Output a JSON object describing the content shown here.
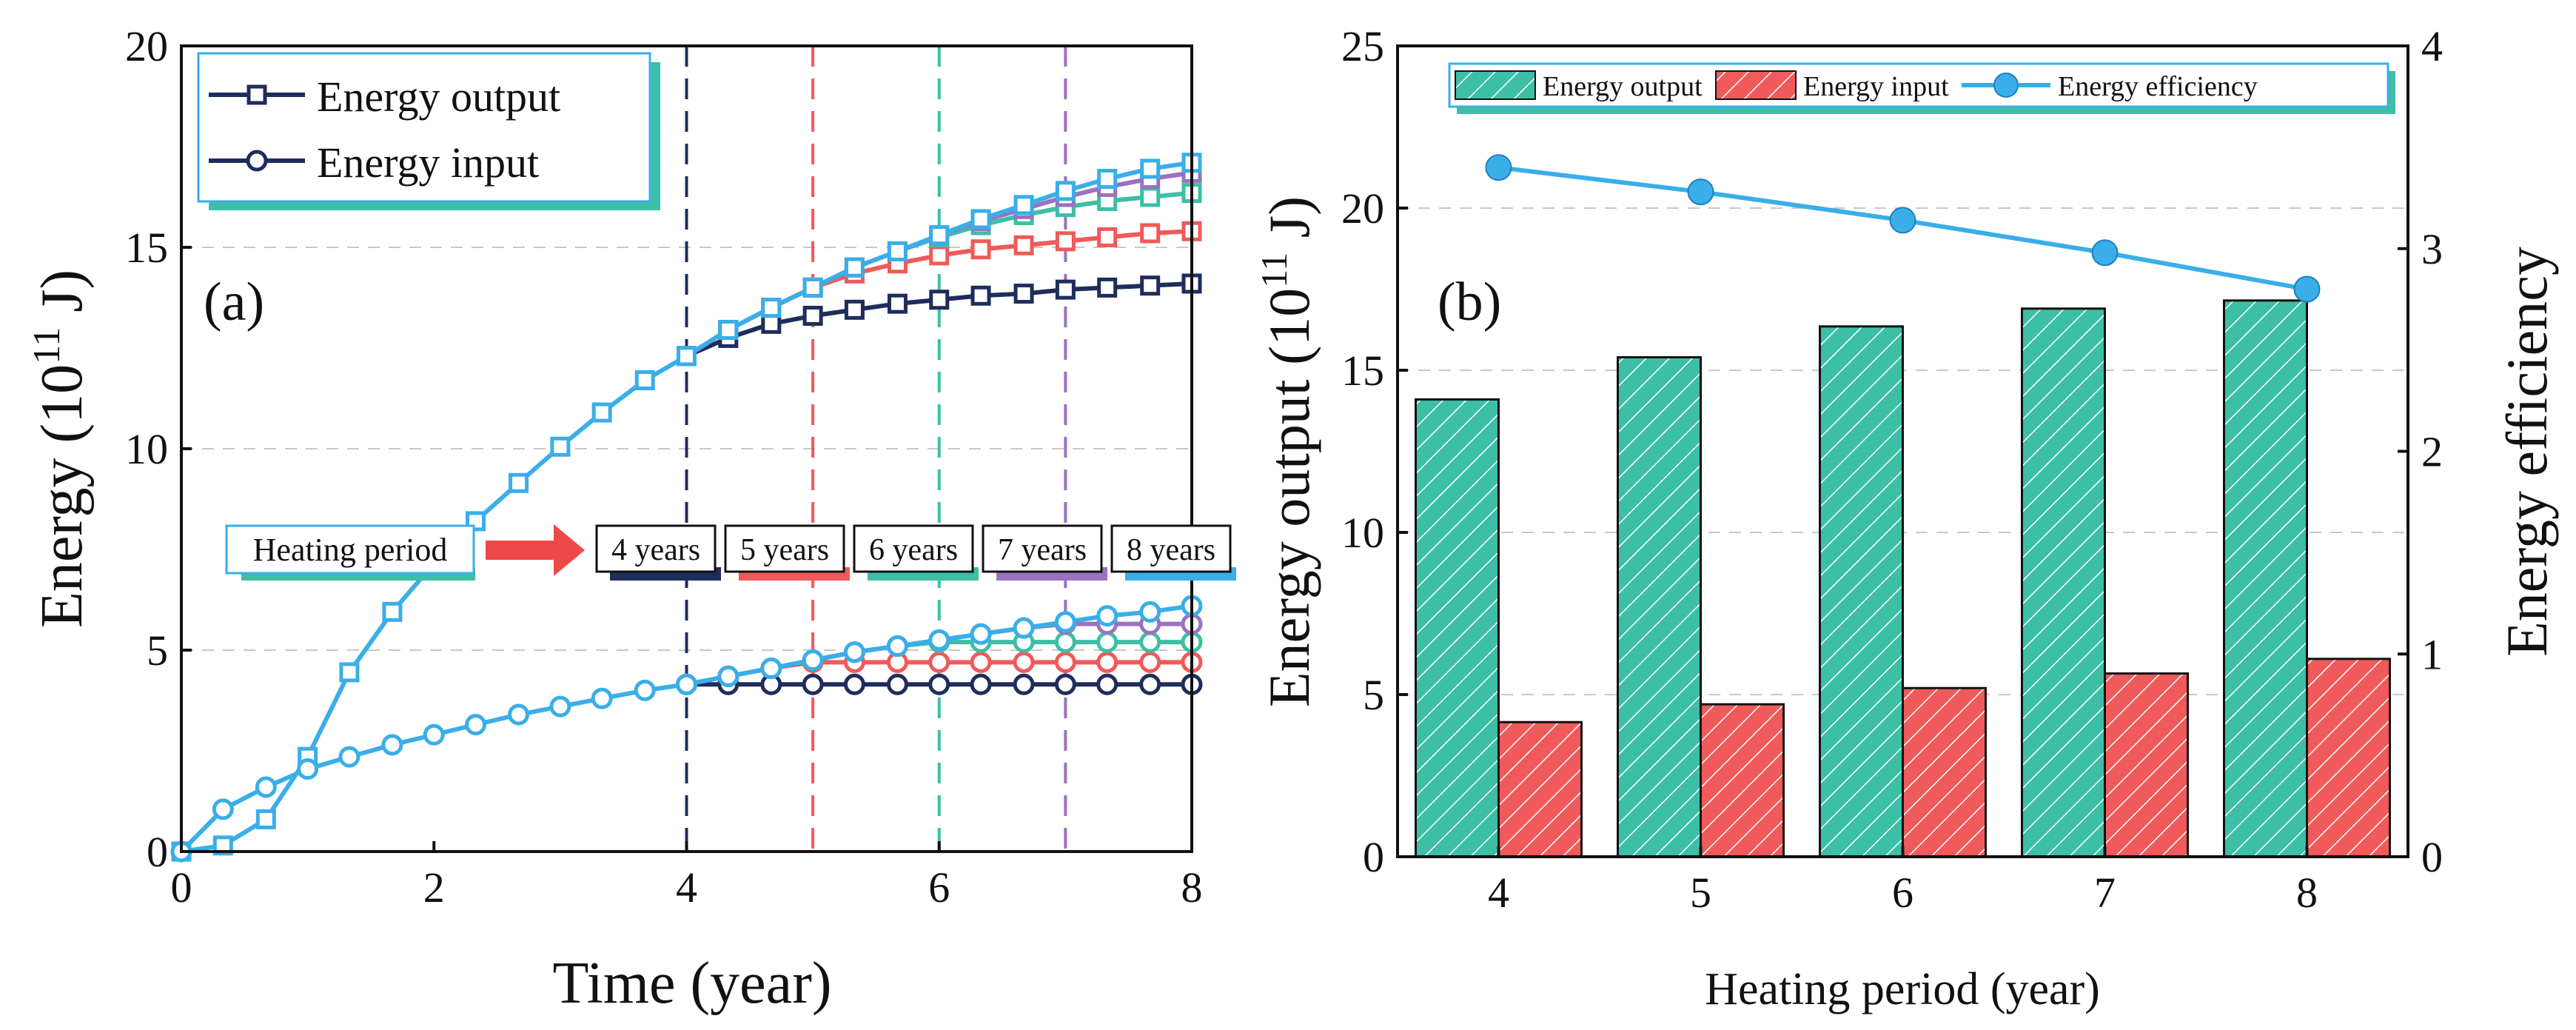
{
  "chart_data": [
    {
      "panel_label": "(a)",
      "type": "line",
      "xlabel": "Time (year)",
      "ylabel_main": "Energy (10",
      "ylabel_sup": "11",
      "ylabel_unit": " J)",
      "xlim": [
        0,
        8
      ],
      "ylim": [
        0,
        20
      ],
      "xticks": [
        "0",
        "2",
        "4",
        "6",
        "8"
      ],
      "yticks": [
        "0",
        "5",
        "10",
        "15",
        "20"
      ],
      "legend": [
        "Energy output",
        "Energy input"
      ],
      "heating_label": "Heating period",
      "period_labels": [
        "4 years",
        "5 years",
        "6 years",
        "7 years",
        "8 years"
      ],
      "period_years": [
        4,
        5,
        6,
        7,
        8
      ],
      "period_colors": [
        "#1f2d5c",
        "#f05a5a",
        "#3cbfa5",
        "#9a72c0",
        "#3aaee8"
      ],
      "x": [
        0,
        0.33,
        0.67,
        1.0,
        1.33,
        1.67,
        2.0,
        2.33,
        2.67,
        3.0,
        3.33,
        3.67,
        4.0,
        4.33,
        4.67,
        5.0,
        5.33,
        5.67,
        6.0,
        6.33,
        6.67,
        7.0,
        7.33,
        7.67,
        8.0
      ],
      "output_common": [
        0,
        0.15,
        0.8,
        2.35,
        4.45,
        5.95,
        7.15,
        8.2,
        9.15,
        10.05,
        10.9,
        11.7,
        12.3
      ],
      "input_common": [
        0,
        1.05,
        1.6,
        2.05,
        2.35,
        2.65,
        2.9,
        3.15,
        3.4,
        3.6,
        3.8,
        4.0,
        4.15
      ],
      "series": [
        {
          "name": "4 years",
          "output": [
            12.3,
            12.75,
            13.1,
            13.3,
            13.45,
            13.6,
            13.7,
            13.8,
            13.85,
            13.95,
            14.0,
            14.05,
            14.1
          ],
          "input": [
            4.15,
            4.15,
            4.15,
            4.15,
            4.15,
            4.15,
            4.15,
            4.15,
            4.15,
            4.15,
            4.15,
            4.15,
            4.15
          ]
        },
        {
          "name": "5 years",
          "output": [
            12.3,
            12.95,
            13.5,
            14.0,
            14.35,
            14.6,
            14.8,
            14.95,
            15.05,
            15.15,
            15.25,
            15.35,
            15.4
          ],
          "input": [
            4.15,
            4.35,
            4.55,
            4.7,
            4.7,
            4.7,
            4.7,
            4.7,
            4.7,
            4.7,
            4.7,
            4.7,
            4.7
          ]
        },
        {
          "name": "6 years",
          "output": [
            12.3,
            12.95,
            13.5,
            14.0,
            14.5,
            14.9,
            15.25,
            15.55,
            15.8,
            16.0,
            16.15,
            16.25,
            16.35
          ],
          "input": [
            4.15,
            4.35,
            4.55,
            4.75,
            4.95,
            5.1,
            5.2,
            5.2,
            5.2,
            5.2,
            5.2,
            5.2,
            5.2
          ]
        },
        {
          "name": "7 years",
          "output": [
            12.3,
            12.95,
            13.5,
            14.0,
            14.5,
            14.9,
            15.3,
            15.65,
            15.95,
            16.25,
            16.5,
            16.7,
            16.85
          ],
          "input": [
            4.15,
            4.35,
            4.55,
            4.75,
            4.95,
            5.1,
            5.25,
            5.4,
            5.55,
            5.65,
            5.65,
            5.65,
            5.65
          ]
        },
        {
          "name": "8 years",
          "output": [
            12.3,
            12.95,
            13.5,
            14.0,
            14.5,
            14.9,
            15.3,
            15.7,
            16.05,
            16.4,
            16.7,
            16.95,
            17.1
          ],
          "input": [
            4.15,
            4.35,
            4.55,
            4.75,
            4.95,
            5.1,
            5.25,
            5.4,
            5.55,
            5.7,
            5.85,
            5.95,
            6.1
          ]
        }
      ]
    },
    {
      "panel_label": "(b)",
      "type": "bar",
      "xlabel": "Heating period (year)",
      "ylabel_main": "Energy output (10",
      "ylabel_sup": "11",
      "ylabel_unit": " J)",
      "y2label": "Energy efficiency",
      "categories": [
        "4",
        "5",
        "6",
        "7",
        "8"
      ],
      "ylim": [
        0,
        25
      ],
      "y2lim": [
        0,
        4
      ],
      "yticks": [
        "0",
        "5",
        "10",
        "15",
        "20",
        "25"
      ],
      "y2ticks": [
        "0",
        "1",
        "2",
        "3",
        "4"
      ],
      "legend": [
        "Energy output",
        "Energy input",
        "Energy efficiency"
      ],
      "series": [
        {
          "name": "Energy output",
          "values": [
            14.1,
            15.4,
            16.35,
            16.9,
            17.15
          ],
          "color": "#3cbfa5"
        },
        {
          "name": "Energy input",
          "values": [
            4.15,
            4.7,
            5.2,
            5.65,
            6.1
          ],
          "color": "#f05a5a"
        },
        {
          "name": "Energy efficiency",
          "values": [
            3.4,
            3.28,
            3.14,
            2.98,
            2.8
          ],
          "color": "#3aaee8",
          "axis": "right"
        }
      ]
    }
  ]
}
